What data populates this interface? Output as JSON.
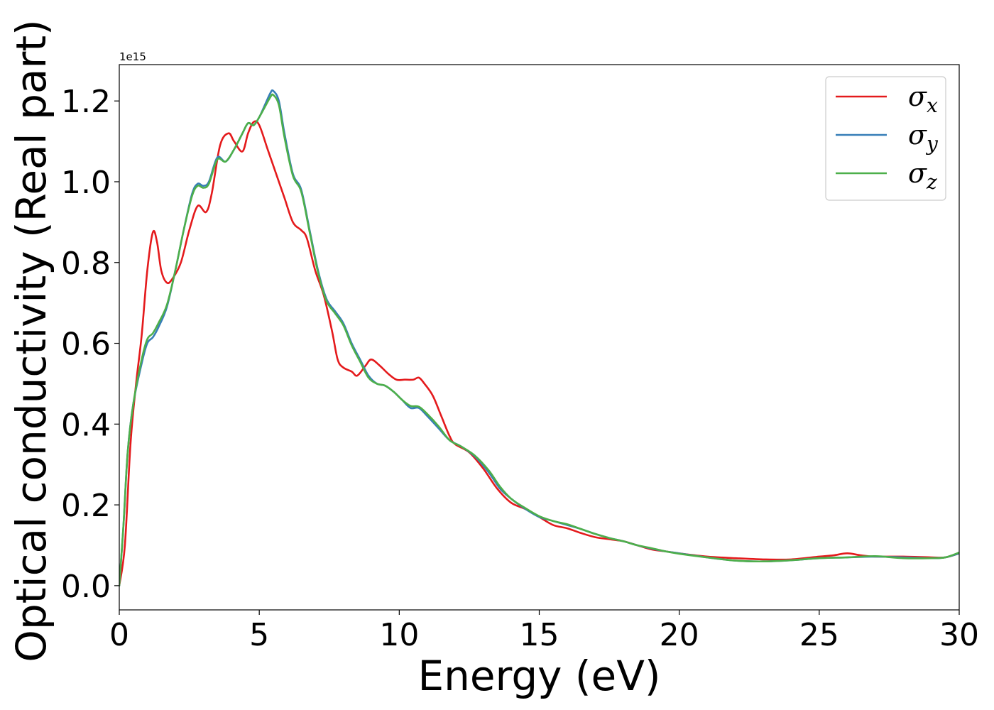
{
  "chart_data": {
    "type": "line",
    "title": "",
    "xlabel": "Energy (eV)",
    "ylabel": "Optical conductivity (Real part)",
    "y_offset_text": "1e15",
    "xlim": [
      0,
      30
    ],
    "ylim": [
      -0.06,
      1.29
    ],
    "xticks": [
      0,
      5,
      10,
      15,
      20,
      25,
      30
    ],
    "xtick_labels": [
      "0",
      "5",
      "10",
      "15",
      "20",
      "25",
      "30"
    ],
    "yticks": [
      0.0,
      0.2,
      0.4,
      0.6,
      0.8,
      1.0,
      1.2
    ],
    "ytick_labels": [
      "0.0",
      "0.2",
      "0.4",
      "0.6",
      "0.8",
      "1.0",
      "1.2"
    ],
    "grid": false,
    "legend": "top-right",
    "series": [
      {
        "name": "σx",
        "legend_main": "σ",
        "legend_sub": "x",
        "color": "#e41a1c",
        "points": [
          [
            0,
            0.0
          ],
          [
            0.2,
            0.1
          ],
          [
            0.4,
            0.35
          ],
          [
            0.6,
            0.5
          ],
          [
            0.8,
            0.62
          ],
          [
            1.0,
            0.78
          ],
          [
            1.2,
            0.875
          ],
          [
            1.35,
            0.85
          ],
          [
            1.5,
            0.78
          ],
          [
            1.7,
            0.75
          ],
          [
            1.9,
            0.76
          ],
          [
            2.2,
            0.8
          ],
          [
            2.5,
            0.88
          ],
          [
            2.8,
            0.94
          ],
          [
            3.1,
            0.925
          ],
          [
            3.3,
            0.97
          ],
          [
            3.6,
            1.09
          ],
          [
            3.9,
            1.12
          ],
          [
            4.1,
            1.1
          ],
          [
            4.4,
            1.075
          ],
          [
            4.6,
            1.12
          ],
          [
            4.8,
            1.148
          ],
          [
            5.0,
            1.14
          ],
          [
            5.3,
            1.08
          ],
          [
            5.6,
            1.02
          ],
          [
            5.9,
            0.96
          ],
          [
            6.2,
            0.9
          ],
          [
            6.5,
            0.88
          ],
          [
            6.7,
            0.86
          ],
          [
            7.0,
            0.78
          ],
          [
            7.3,
            0.72
          ],
          [
            7.6,
            0.63
          ],
          [
            7.8,
            0.56
          ],
          [
            8.0,
            0.54
          ],
          [
            8.3,
            0.53
          ],
          [
            8.5,
            0.52
          ],
          [
            8.8,
            0.545
          ],
          [
            9.0,
            0.56
          ],
          [
            9.3,
            0.545
          ],
          [
            9.6,
            0.525
          ],
          [
            9.9,
            0.51
          ],
          [
            10.2,
            0.51
          ],
          [
            10.5,
            0.51
          ],
          [
            10.7,
            0.515
          ],
          [
            10.9,
            0.5
          ],
          [
            11.2,
            0.47
          ],
          [
            11.5,
            0.42
          ],
          [
            11.8,
            0.37
          ],
          [
            12.0,
            0.35
          ],
          [
            12.5,
            0.33
          ],
          [
            13.0,
            0.29
          ],
          [
            13.5,
            0.24
          ],
          [
            14.0,
            0.205
          ],
          [
            14.5,
            0.19
          ],
          [
            15.0,
            0.17
          ],
          [
            15.5,
            0.15
          ],
          [
            16.0,
            0.142
          ],
          [
            16.5,
            0.13
          ],
          [
            17.0,
            0.12
          ],
          [
            17.5,
            0.115
          ],
          [
            18.0,
            0.11
          ],
          [
            18.5,
            0.1
          ],
          [
            19.0,
            0.09
          ],
          [
            19.5,
            0.085
          ],
          [
            20.0,
            0.08
          ],
          [
            21.0,
            0.072
          ],
          [
            22.0,
            0.068
          ],
          [
            23.0,
            0.065
          ],
          [
            24.0,
            0.065
          ],
          [
            25.0,
            0.072
          ],
          [
            25.5,
            0.075
          ],
          [
            26.0,
            0.08
          ],
          [
            26.5,
            0.075
          ],
          [
            27.0,
            0.072
          ],
          [
            28.0,
            0.072
          ],
          [
            29.0,
            0.07
          ],
          [
            29.5,
            0.07
          ],
          [
            30.0,
            0.08
          ]
        ]
      },
      {
        "name": "σy",
        "legend_main": "σ",
        "legend_sub": "y",
        "color": "#377eb8",
        "points": [
          [
            0,
            0.0
          ],
          [
            0.15,
            0.15
          ],
          [
            0.3,
            0.33
          ],
          [
            0.5,
            0.45
          ],
          [
            0.8,
            0.55
          ],
          [
            1.0,
            0.6
          ],
          [
            1.2,
            0.615
          ],
          [
            1.4,
            0.64
          ],
          [
            1.7,
            0.69
          ],
          [
            2.0,
            0.78
          ],
          [
            2.3,
            0.88
          ],
          [
            2.6,
            0.97
          ],
          [
            2.8,
            0.995
          ],
          [
            3.0,
            0.99
          ],
          [
            3.2,
            1.0
          ],
          [
            3.5,
            1.06
          ],
          [
            3.8,
            1.05
          ],
          [
            4.1,
            1.08
          ],
          [
            4.4,
            1.12
          ],
          [
            4.6,
            1.145
          ],
          [
            4.8,
            1.14
          ],
          [
            5.0,
            1.16
          ],
          [
            5.2,
            1.19
          ],
          [
            5.4,
            1.22
          ],
          [
            5.5,
            1.225
          ],
          [
            5.7,
            1.2
          ],
          [
            5.9,
            1.12
          ],
          [
            6.2,
            1.02
          ],
          [
            6.5,
            0.98
          ],
          [
            6.8,
            0.88
          ],
          [
            7.1,
            0.78
          ],
          [
            7.4,
            0.71
          ],
          [
            7.7,
            0.68
          ],
          [
            8.0,
            0.65
          ],
          [
            8.3,
            0.6
          ],
          [
            8.6,
            0.56
          ],
          [
            8.9,
            0.52
          ],
          [
            9.2,
            0.5
          ],
          [
            9.5,
            0.495
          ],
          [
            9.8,
            0.48
          ],
          [
            10.1,
            0.46
          ],
          [
            10.4,
            0.44
          ],
          [
            10.7,
            0.44
          ],
          [
            11.0,
            0.42
          ],
          [
            11.4,
            0.39
          ],
          [
            11.8,
            0.36
          ],
          [
            12.2,
            0.345
          ],
          [
            12.7,
            0.32
          ],
          [
            13.2,
            0.28
          ],
          [
            13.6,
            0.24
          ],
          [
            14.0,
            0.215
          ],
          [
            14.5,
            0.19
          ],
          [
            15.0,
            0.17
          ],
          [
            15.5,
            0.16
          ],
          [
            16.0,
            0.15
          ],
          [
            16.5,
            0.14
          ],
          [
            17.0,
            0.128
          ],
          [
            17.5,
            0.118
          ],
          [
            18.0,
            0.11
          ],
          [
            18.5,
            0.1
          ],
          [
            19.0,
            0.092
          ],
          [
            19.5,
            0.085
          ],
          [
            20.0,
            0.08
          ],
          [
            21.0,
            0.07
          ],
          [
            22.0,
            0.062
          ],
          [
            23.0,
            0.06
          ],
          [
            24.0,
            0.063
          ],
          [
            25.0,
            0.068
          ],
          [
            26.0,
            0.07
          ],
          [
            27.0,
            0.072
          ],
          [
            28.0,
            0.07
          ],
          [
            29.0,
            0.068
          ],
          [
            29.5,
            0.07
          ],
          [
            30.0,
            0.08
          ]
        ]
      },
      {
        "name": "σz",
        "legend_main": "σ",
        "legend_sub": "z",
        "color": "#4daf4a",
        "points": [
          [
            0,
            0.0
          ],
          [
            0.15,
            0.15
          ],
          [
            0.3,
            0.33
          ],
          [
            0.5,
            0.45
          ],
          [
            0.8,
            0.56
          ],
          [
            1.0,
            0.61
          ],
          [
            1.2,
            0.625
          ],
          [
            1.4,
            0.65
          ],
          [
            1.7,
            0.695
          ],
          [
            2.0,
            0.78
          ],
          [
            2.3,
            0.88
          ],
          [
            2.6,
            0.965
          ],
          [
            2.8,
            0.99
          ],
          [
            3.0,
            0.985
          ],
          [
            3.2,
            0.995
          ],
          [
            3.5,
            1.055
          ],
          [
            3.8,
            1.05
          ],
          [
            4.1,
            1.08
          ],
          [
            4.4,
            1.12
          ],
          [
            4.6,
            1.145
          ],
          [
            4.8,
            1.14
          ],
          [
            5.0,
            1.16
          ],
          [
            5.2,
            1.185
          ],
          [
            5.4,
            1.21
          ],
          [
            5.5,
            1.215
          ],
          [
            5.7,
            1.19
          ],
          [
            5.9,
            1.11
          ],
          [
            6.2,
            1.015
          ],
          [
            6.5,
            0.975
          ],
          [
            6.8,
            0.875
          ],
          [
            7.1,
            0.775
          ],
          [
            7.4,
            0.705
          ],
          [
            7.7,
            0.675
          ],
          [
            8.0,
            0.645
          ],
          [
            8.3,
            0.595
          ],
          [
            8.6,
            0.555
          ],
          [
            8.9,
            0.515
          ],
          [
            9.2,
            0.5
          ],
          [
            9.5,
            0.495
          ],
          [
            9.8,
            0.48
          ],
          [
            10.1,
            0.46
          ],
          [
            10.4,
            0.445
          ],
          [
            10.7,
            0.443
          ],
          [
            11.0,
            0.425
          ],
          [
            11.4,
            0.395
          ],
          [
            11.8,
            0.36
          ],
          [
            12.2,
            0.345
          ],
          [
            12.7,
            0.322
          ],
          [
            13.2,
            0.285
          ],
          [
            13.6,
            0.245
          ],
          [
            14.0,
            0.215
          ],
          [
            14.5,
            0.192
          ],
          [
            15.0,
            0.172
          ],
          [
            15.5,
            0.16
          ],
          [
            16.0,
            0.152
          ],
          [
            16.5,
            0.14
          ],
          [
            17.0,
            0.128
          ],
          [
            17.5,
            0.118
          ],
          [
            18.0,
            0.11
          ],
          [
            18.5,
            0.1
          ],
          [
            19.0,
            0.093
          ],
          [
            19.5,
            0.085
          ],
          [
            20.0,
            0.079
          ],
          [
            21.0,
            0.07
          ],
          [
            22.0,
            0.062
          ],
          [
            23.0,
            0.06
          ],
          [
            24.0,
            0.063
          ],
          [
            25.0,
            0.068
          ],
          [
            26.0,
            0.07
          ],
          [
            27.0,
            0.073
          ],
          [
            28.0,
            0.068
          ],
          [
            29.0,
            0.068
          ],
          [
            29.5,
            0.07
          ],
          [
            30.0,
            0.082
          ]
        ]
      }
    ]
  }
}
